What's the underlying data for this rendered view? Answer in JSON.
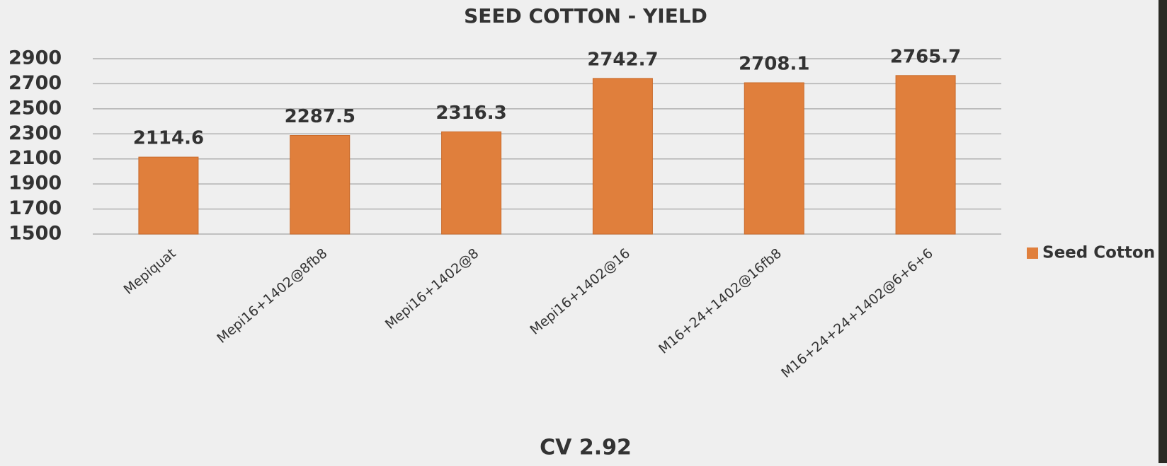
{
  "chart_data": {
    "type": "bar",
    "title": "SEED COTTON - YIELD",
    "categories": [
      "Mepiquat",
      "Mepi16+1402@8fb8",
      "Mepi16+1402@8",
      "Mepi16+1402@16",
      "M16+24+1402@16fb8",
      "M16+24+24+1402@6+6+6"
    ],
    "series": [
      {
        "name": "Seed Cotton",
        "color": "#e07f3c",
        "values": [
          2114.6,
          2287.5,
          2316.3,
          2742.7,
          2708.1,
          2765.7
        ]
      }
    ],
    "ylim": [
      1500,
      2900
    ],
    "yticks": [
      1500,
      1700,
      1900,
      2100,
      2300,
      2500,
      2700,
      2900
    ],
    "grid": true,
    "legend": "right",
    "annotation": "CV 2.92"
  }
}
